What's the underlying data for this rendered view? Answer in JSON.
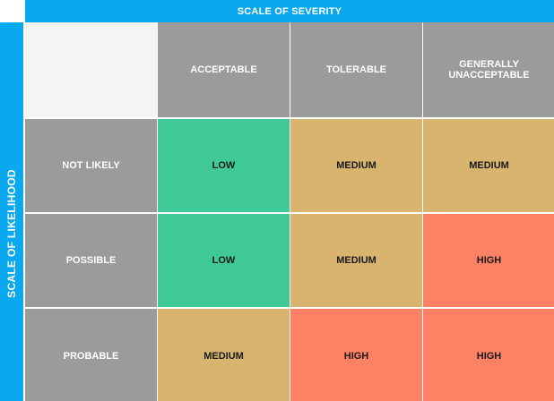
{
  "severity_title": "SCALE OF SEVERITY",
  "likelihood_title": "SCALE OF LIKELIHOOD",
  "severity_levels": [
    "ACCEPTABLE",
    "TOLERABLE",
    "GENERALLY UNACCEPTABLE"
  ],
  "likelihood_levels": [
    "NOT LIKELY",
    "POSSIBLE",
    "PROBABLE"
  ],
  "matrix": [
    [
      "LOW",
      "MEDIUM",
      "MEDIUM"
    ],
    [
      "LOW",
      "MEDIUM",
      "HIGH"
    ],
    [
      "MEDIUM",
      "HIGH",
      "HIGH"
    ]
  ],
  "colors": {
    "band": "#0aa8ef",
    "header": "#9b9b9b",
    "LOW": "#3ec996",
    "MEDIUM": "#d8b46e",
    "HIGH": "#fd8165"
  }
}
